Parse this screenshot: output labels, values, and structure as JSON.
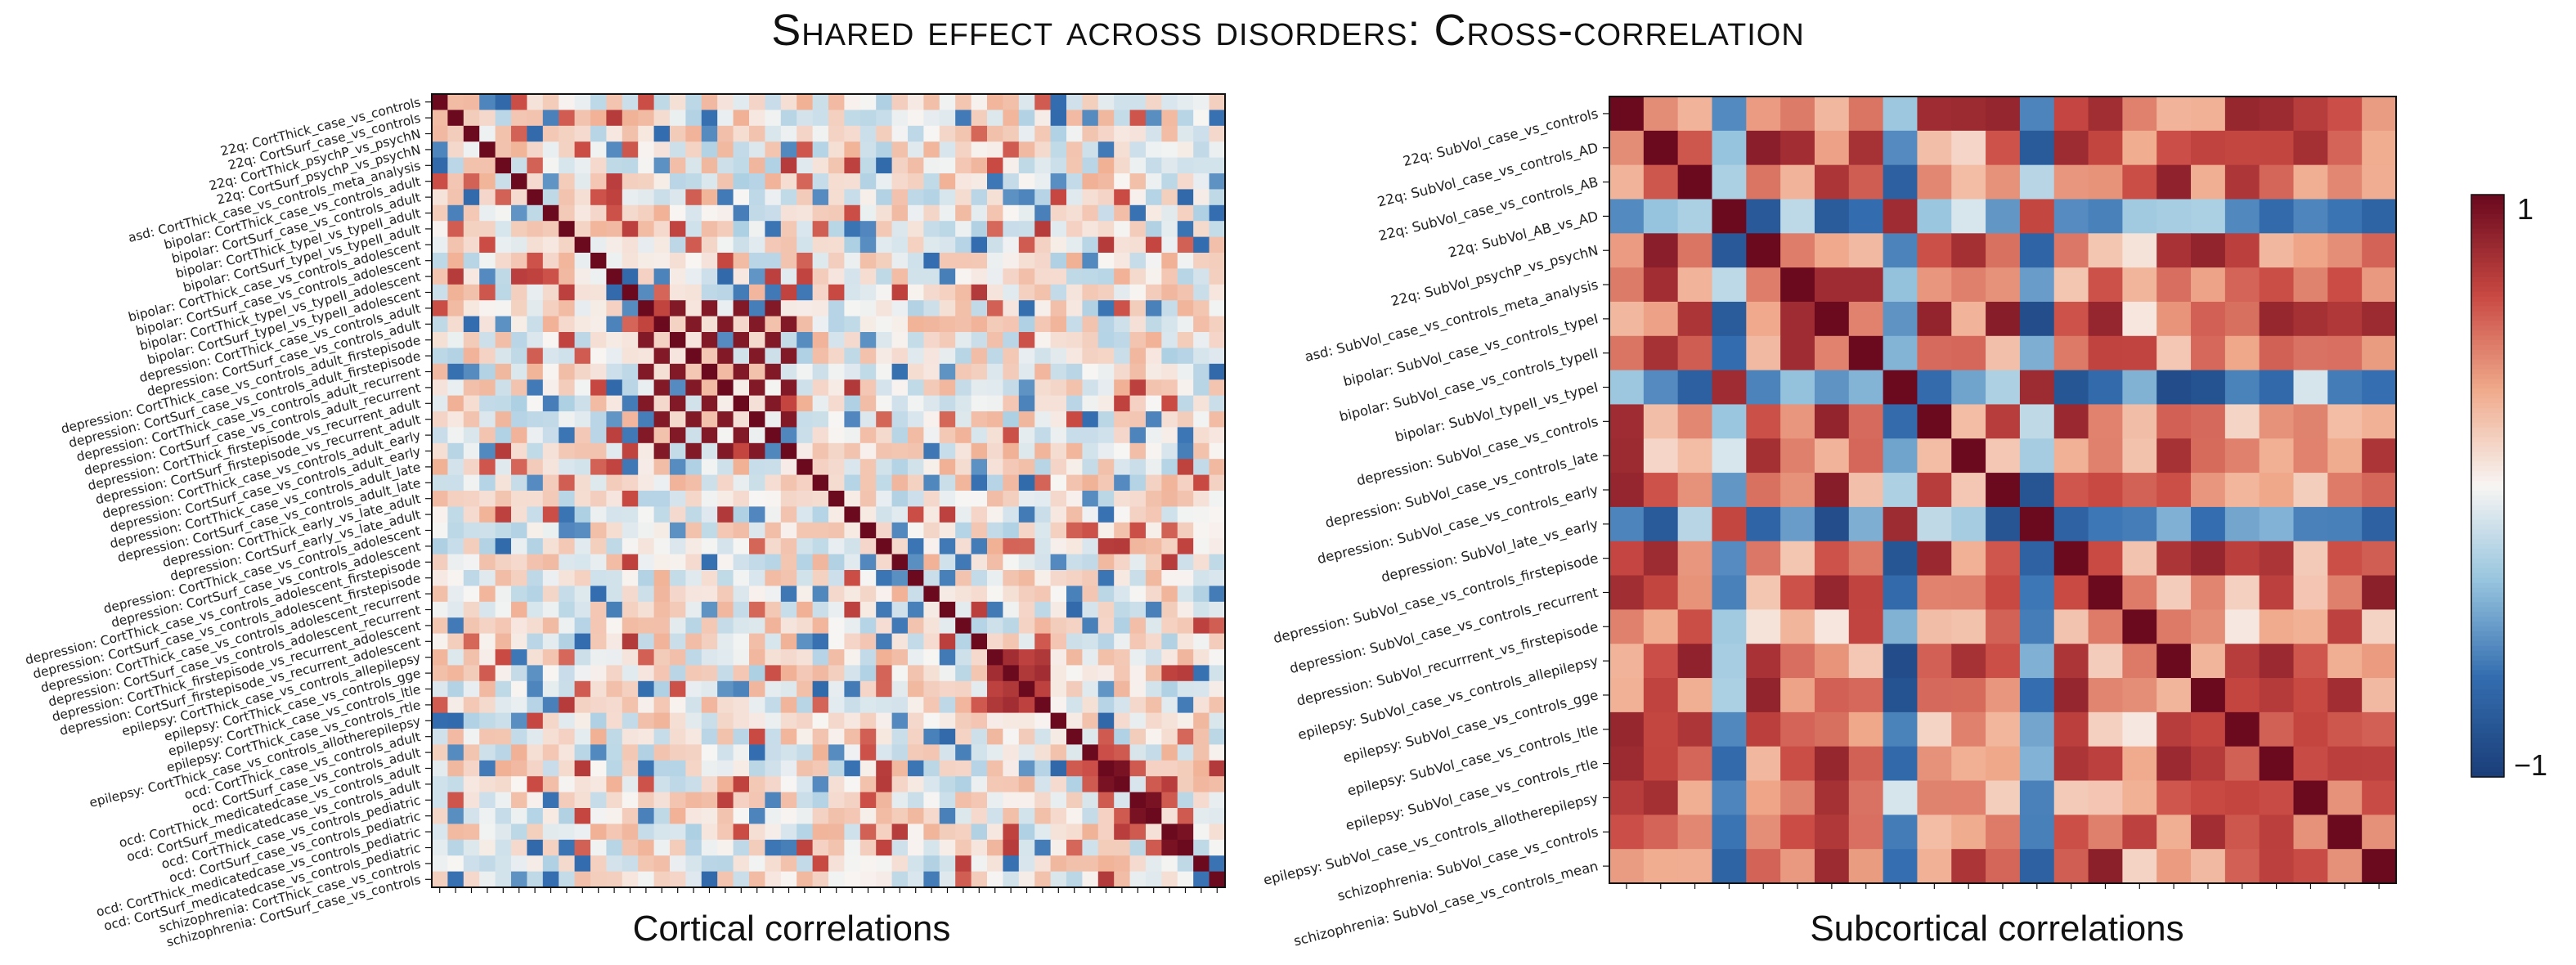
{
  "title": "Shared effect across disorders: Cross-correlation",
  "chart_data": [
    {
      "type": "heatmap",
      "title": "Cortical correlations",
      "color_scale": {
        "min": -1,
        "max": 1,
        "low_color": "#1b3f7a",
        "mid_color": "#f7f7f7",
        "high_color": "#6b0a1f"
      },
      "row_labels": [
        "22q: CortThick_case_vs_controls",
        "22q: CortSurf_case_vs_controls",
        "22q: CortThick_psychP_vs_psychN",
        "22q: CortSurf_psychP_vs_psychN",
        "asd: CortThick_case_vs_controls_meta_analysis",
        "bipolar: CortThick_case_vs_controls_adult",
        "bipolar: CortSurf_case_vs_controls_adult",
        "bipolar: CortThick_typeI_vs_typeII_adult",
        "bipolar: CortSurf_typeI_vs_typeII_adult",
        "bipolar: CortThick_case_vs_controls_adolescent",
        "bipolar: CortSurf_case_vs_controls_adolescent",
        "bipolar: CortThick_typeI_vs_typeII_adolescent",
        "bipolar: CortSurf_typeI_vs_typeII_adolescent",
        "depression: CortThick_case_vs_controls_adult",
        "depression: CortSurf_case_vs_controls_adult",
        "depression: CortThick_case_vs_controls_adult_firstepisode",
        "depression: CortSurf_case_vs_controls_adult_firstepisode",
        "depression: CortThick_case_vs_controls_adult_recurrent",
        "depression: CortSurf_case_vs_controls_adult_recurrent",
        "depression: CortThick_firstepisode_vs_recurrent_adult",
        "depression: CortSurf_firstepisode_vs_recurrent_adult",
        "depression: CortThick_case_vs_controls_adult_early",
        "depression: CortSurf_case_vs_controls_adult_early",
        "depression: CortThick_case_vs_controls_adult_late",
        "depression: CortSurf_case_vs_controls_adult_late",
        "depression: CortThick_early_vs_late_adult",
        "depression: CortSurf_early_vs_late_adult",
        "depression: CortThick_case_vs_controls_adolescent",
        "depression: CortSurf_case_vs_controls_adolescent",
        "depression: CortThick_case_vs_controls_adolescent_firstepisode",
        "depression: CortSurf_case_vs_controls_adolescent_firstepisode",
        "depression: CortThick_case_vs_controls_adolescent_recurrent",
        "depression: CortSurf_case_vs_controls_adolescent_recurrent",
        "depression: CortThick_firstepisode_vs_recurrent_adolescent",
        "depression: CortSurf_firstepisode_vs_recurrent_adolescent",
        "epilepsy: CortThick_case_vs_controls_allepilepsy",
        "epilepsy: CortThick_case_vs_controls_gge",
        "epilepsy: CortThick_case_vs_controls_ltle",
        "epilepsy: CortThick_case_vs_controls_rtle",
        "epilepsy: CortThick_case_vs_controls_allotherepilepsy",
        "ocd: CortThick_case_vs_controls_adult",
        "ocd: CortSurf_case_vs_controls_adult",
        "ocd: CortThick_medicatedcase_vs_controls_adult",
        "ocd: CortSurf_medicatedcase_vs_controls_adult",
        "ocd: CortThick_case_vs_controls_pediatric",
        "ocd: CortSurf_case_vs_controls_pediatric",
        "ocd: CortThick_medicatedcase_vs_controls_pediatric",
        "ocd: CortSurf_medicatedcase_vs_controls_pediatric",
        "schizophrenia: CortThick_case_vs_controls",
        "schizophrenia: CortSurf_case_vs_controls"
      ],
      "values_note_cells": "see seed",
      "blocks": [
        {
          "rows": [
            13,
            22
          ],
          "pattern": "checker",
          "value": 0.9
        },
        {
          "rows": [
            35,
            39
          ],
          "pattern": "block",
          "value": 0.75
        }
      ],
      "pairs": [
        [
          42,
          43
        ],
        [
          44,
          45
        ],
        [
          46,
          47
        ]
      ]
    },
    {
      "type": "heatmap",
      "title": "Subcortical correlations",
      "color_scale": {
        "min": -1,
        "max": 1
      },
      "row_labels": [
        "22q: SubVol_case_vs_controls",
        "22q: SubVol_case_vs_controls_AD",
        "22q: SubVol_case_vs_controls_AB",
        "22q: SubVol_AB_vs_AD",
        "22q: SubVol_psychP_vs_psychN",
        "asd: SubVol_case_vs_controls_meta_analysis",
        "bipolar: SubVol_case_vs_controls_typeI",
        "bipolar: SubVol_case_vs_controls_typeII",
        "bipolar: SubVol_typeII_vs_typeI",
        "depression: SubVol_case_vs_controls",
        "depression: SubVol_case_vs_controls_late",
        "depression: SubVol_case_vs_controls_early",
        "depression: SubVol_late_vs_early",
        "depression: SubVol_case_vs_controls_firstepisode",
        "depression: SubVol_case_vs_controls_recurrent",
        "depression: SubVol_recurrrent_vs_firstepisode",
        "epilepsy: SubVol_case_vs_controls_allepilepsy",
        "epilepsy: SubVol_case_vs_controls_gge",
        "epilepsy: SubVol_case_vs_controls_ltle",
        "epilepsy: SubVol_case_vs_controls_rtle",
        "epilepsy: SubVol_case_vs_controls_allotherepilepsy",
        "schizophrenia: SubVol_case_vs_controls",
        "schizophrenia: SubVol_case_vs_controls_mean"
      ],
      "negative_rows": [
        3,
        8,
        12
      ],
      "row_means": [
        0.6,
        0.6,
        0.55,
        -0.4,
        0.55,
        0.55,
        0.6,
        0.5,
        -0.55,
        0.5,
        0.35,
        0.6,
        -0.55,
        0.55,
        0.5,
        0.2,
        0.55,
        0.5,
        0.45,
        0.45,
        0.3,
        0.6,
        0.6
      ]
    }
  ],
  "colorbar": {
    "max_label": "1",
    "min_label": "−1"
  }
}
